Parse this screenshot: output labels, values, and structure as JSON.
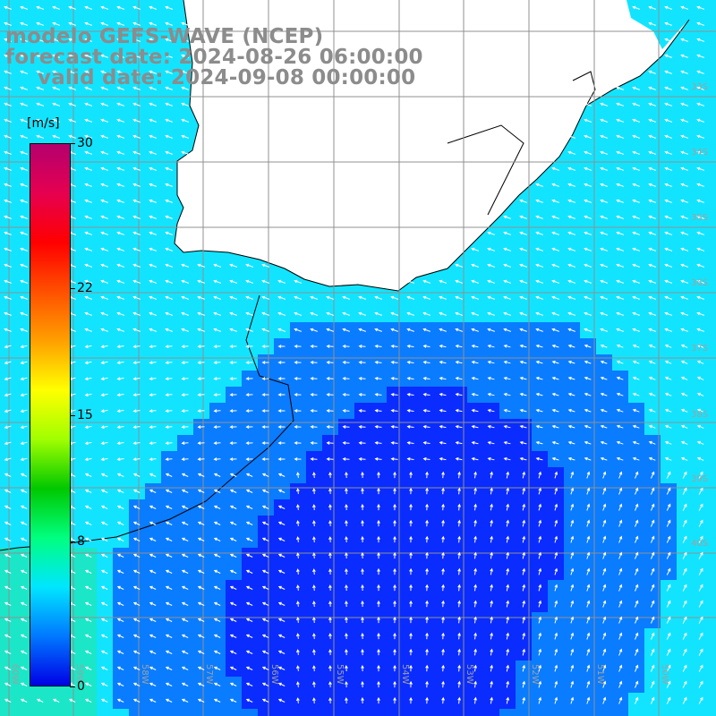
{
  "header": {
    "line1": "modelo GEFS-WAVE (NCEP)",
    "line2": "forecast date: 2024-08-26 06:00:00",
    "line3": "valid date: 2024-09-08 00:00:00"
  },
  "colorbar": {
    "unit": "[m/s]",
    "stops": [
      "#0000e6",
      "#0078ff",
      "#00e6ff",
      "#00ff80",
      "#00c800",
      "#a0ff00",
      "#ffff00",
      "#ffa000",
      "#ff5000",
      "#ff0000",
      "#e60050",
      "#b4006e"
    ],
    "ticks": [
      {
        "value": 30,
        "label": "30"
      },
      {
        "value": 22,
        "label": "22"
      },
      {
        "value": 15,
        "label": "15"
      },
      {
        "value": 8,
        "label": "8"
      },
      {
        "value": 0,
        "label": "0"
      }
    ]
  },
  "map": {
    "field_colors": {
      "weak": "#0a2cff",
      "mid": "#0a7cff",
      "strong": "#12e4ff",
      "land": "#ffffff",
      "coast": "#000000",
      "grid": "#909090",
      "arrow": "#ffffff"
    },
    "lat_labels": [
      "33S",
      "34S",
      "35S",
      "36S",
      "37S",
      "38S",
      "39S",
      "40S"
    ],
    "lon_labels": [
      "60W",
      "59W",
      "58W",
      "57W",
      "56W",
      "55W",
      "54W",
      "53W",
      "52W",
      "51W",
      "50W"
    ]
  }
}
